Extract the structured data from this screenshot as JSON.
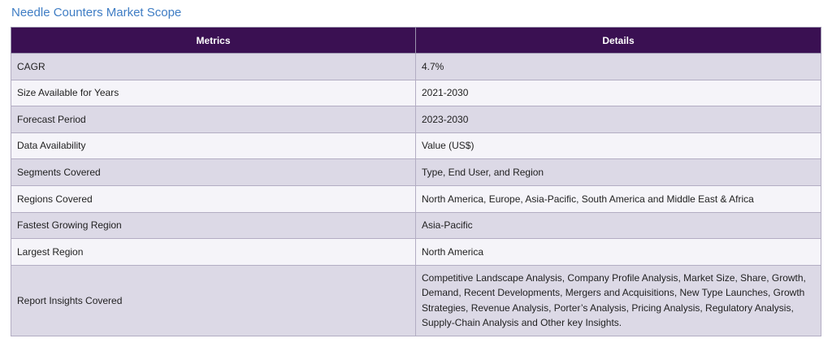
{
  "title": "Needle Counters Market Scope",
  "table": {
    "headers": [
      "Metrics",
      "Details"
    ],
    "rows": [
      {
        "metric": "CAGR",
        "detail": "4.7%"
      },
      {
        "metric": "Size Available for Years",
        "detail": "2021-2030"
      },
      {
        "metric": "Forecast Period",
        "detail": "2023-2030"
      },
      {
        "metric": "Data Availability",
        "detail": "Value (US$)"
      },
      {
        "metric": "Segments Covered",
        "detail": "Type, End User, and Region"
      },
      {
        "metric": "Regions Covered",
        "detail": "North America, Europe, Asia-Pacific, South America and Middle East & Africa"
      },
      {
        "metric": "Fastest Growing Region",
        "detail": "Asia-Pacific"
      },
      {
        "metric": "Largest Region",
        "detail": "North America"
      },
      {
        "metric": "Report Insights Covered",
        "detail": "Competitive Landscape Analysis, Company Profile Analysis, Market Size, Share, Growth, Demand, Recent Developments, Mergers and Acquisitions, New Type Launches, Growth Strategies, Revenue Analysis, Porter’s Analysis, Pricing Analysis, Regulatory Analysis, Supply-Chain Analysis and Other key Insights."
      }
    ]
  },
  "colors": {
    "title": "#3f7dc4",
    "header_bg": "#3a1052",
    "row_odd": "#dcd9e6",
    "row_even": "#f5f4f9"
  }
}
